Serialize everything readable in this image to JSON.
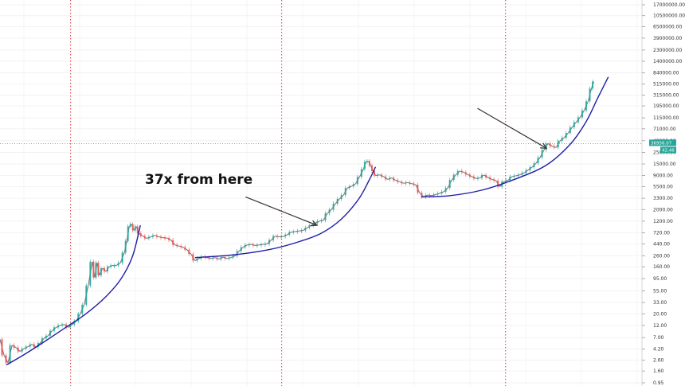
{
  "chart_data": {
    "type": "line",
    "scale": "log",
    "grid": true,
    "y_ticks": [
      "17000000.00",
      "10500000.00",
      "6500000.00",
      "3900000.00",
      "2300000.00",
      "1400000.00",
      "840000.00",
      "515000.00",
      "315000.00",
      "195000.00",
      "115000.00",
      "71000.00",
      "42000.00",
      "25000.00",
      "15000.00",
      "9000.00",
      "5500.00",
      "3300.00",
      "2000.00",
      "1200.00",
      "720.00",
      "440.00",
      "260.00",
      "160.00",
      "95.00",
      "55.00",
      "33.00",
      "20.00",
      "12.00",
      "7.00",
      "4.20",
      "2.60",
      "1.60",
      "0.95"
    ],
    "y_range": [
      0.95,
      17000000
    ],
    "current_price_label": "36956.07",
    "countdown_label": "42:46",
    "annotation": "37x from here",
    "colors": {
      "up_candle": "#26a69a",
      "down_candle": "#ef5350",
      "price_series": "#7a7a7a",
      "support_curve": "#1f1fa8",
      "halving_line": "#e53935",
      "price_tag": "#26a69a",
      "countdown_tag": "#26a69a"
    },
    "series": [
      {
        "values": [
          [
            0,
            6.5
          ],
          [
            5,
            3.2
          ],
          [
            10,
            2.3
          ],
          [
            15,
            5
          ],
          [
            20,
            4.5
          ],
          [
            25,
            3.8
          ],
          [
            30,
            4.3
          ],
          [
            35,
            4.7
          ],
          [
            40,
            5.2
          ],
          [
            45,
            4.6
          ],
          [
            50,
            5.5
          ],
          [
            55,
            6.8
          ],
          [
            60,
            7.6
          ],
          [
            65,
            9.5
          ],
          [
            70,
            11
          ],
          [
            75,
            12
          ],
          [
            80,
            12.5
          ],
          [
            85,
            11
          ],
          [
            90,
            12.5
          ],
          [
            95,
            14.5
          ],
          [
            100,
            20
          ],
          [
            105,
            30
          ],
          [
            110,
            70
          ],
          [
            115,
            200
          ],
          [
            118,
            100
          ],
          [
            121,
            190
          ],
          [
            124,
            110
          ],
          [
            128,
            150
          ],
          [
            132,
            130
          ],
          [
            136,
            160
          ],
          [
            140,
            170
          ],
          [
            145,
            170
          ],
          [
            150,
            190
          ],
          [
            155,
            300
          ],
          [
            158,
            500
          ],
          [
            161,
            950
          ],
          [
            164,
            1050
          ],
          [
            167,
            800
          ],
          [
            170,
            950
          ],
          [
            173,
            700
          ],
          [
            178,
            620
          ],
          [
            183,
            560
          ],
          [
            188,
            600
          ],
          [
            193,
            640
          ],
          [
            198,
            600
          ],
          [
            203,
            580
          ],
          [
            208,
            570
          ],
          [
            213,
            520
          ],
          [
            218,
            420
          ],
          [
            223,
            400
          ],
          [
            228,
            380
          ],
          [
            233,
            340
          ],
          [
            238,
            280
          ],
          [
            243,
            210
          ],
          [
            248,
            230
          ],
          [
            253,
            250
          ],
          [
            258,
            240
          ],
          [
            263,
            230
          ],
          [
            268,
            240
          ],
          [
            273,
            225
          ],
          [
            278,
            245
          ],
          [
            283,
            230
          ],
          [
            288,
            240
          ],
          [
            293,
            260
          ],
          [
            298,
            320
          ],
          [
            303,
            380
          ],
          [
            308,
            420
          ],
          [
            313,
            430
          ],
          [
            318,
            410
          ],
          [
            323,
            420
          ],
          [
            328,
            430
          ],
          [
            333,
            440
          ],
          [
            338,
            520
          ],
          [
            343,
            620
          ],
          [
            348,
            600
          ],
          [
            353,
            610
          ],
          [
            358,
            660
          ],
          [
            363,
            740
          ],
          [
            368,
            760
          ],
          [
            373,
            780
          ],
          [
            378,
            800
          ],
          [
            383,
            900
          ],
          [
            388,
            1000
          ],
          [
            393,
            1100
          ],
          [
            398,
            1200
          ],
          [
            403,
            1250
          ],
          [
            408,
            1700
          ],
          [
            413,
            2000
          ],
          [
            418,
            2600
          ],
          [
            423,
            3200
          ],
          [
            428,
            3800
          ],
          [
            433,
            5200
          ],
          [
            438,
            5600
          ],
          [
            443,
            6200
          ],
          [
            448,
            8500
          ],
          [
            453,
            12000
          ],
          [
            456,
            16500
          ],
          [
            459,
            17000
          ],
          [
            462,
            14000
          ],
          [
            465,
            11000
          ],
          [
            468,
            9000
          ],
          [
            473,
            9300
          ],
          [
            478,
            8600
          ],
          [
            483,
            7600
          ],
          [
            488,
            8100
          ],
          [
            493,
            7300
          ],
          [
            498,
            6800
          ],
          [
            503,
            6400
          ],
          [
            508,
            6600
          ],
          [
            513,
            6300
          ],
          [
            518,
            6000
          ],
          [
            523,
            4200
          ],
          [
            528,
            3500
          ],
          [
            533,
            3800
          ],
          [
            538,
            3700
          ],
          [
            543,
            3900
          ],
          [
            548,
            4100
          ],
          [
            553,
            4400
          ],
          [
            558,
            5200
          ],
          [
            563,
            7400
          ],
          [
            568,
            9300
          ],
          [
            573,
            11000
          ],
          [
            578,
            10400
          ],
          [
            583,
            9400
          ],
          [
            588,
            8600
          ],
          [
            593,
            7900
          ],
          [
            598,
            8100
          ],
          [
            603,
            9200
          ],
          [
            608,
            8300
          ],
          [
            613,
            7600
          ],
          [
            618,
            7200
          ],
          [
            623,
            5500
          ],
          [
            628,
            6900
          ],
          [
            633,
            7300
          ],
          [
            638,
            8600
          ],
          [
            643,
            8900
          ],
          [
            648,
            9300
          ],
          [
            653,
            10100
          ],
          [
            658,
            11400
          ],
          [
            663,
            13000
          ],
          [
            668,
            15500
          ],
          [
            673,
            20000
          ],
          [
            678,
            28000
          ],
          [
            683,
            36956
          ],
          [
            688,
            33000
          ],
          [
            693,
            31000
          ],
          [
            698,
            42000
          ],
          [
            703,
            48000
          ],
          [
            708,
            59000
          ],
          [
            713,
            76000
          ],
          [
            718,
            95000
          ],
          [
            723,
            118000
          ],
          [
            728,
            160000
          ],
          [
            733,
            240000
          ],
          [
            737,
            420000
          ],
          [
            740,
            570000
          ]
        ]
      }
    ],
    "support_curves": [
      [
        [
          8,
          2.1
        ],
        [
          30,
          3.3
        ],
        [
          55,
          5.8
        ],
        [
          80,
          10.5
        ],
        [
          105,
          19
        ],
        [
          130,
          40
        ],
        [
          150,
          90
        ],
        [
          165,
          250
        ],
        [
          175,
          1000
        ]
      ],
      [
        [
          243,
          240
        ],
        [
          290,
          270
        ],
        [
          335,
          340
        ],
        [
          370,
          470
        ],
        [
          400,
          700
        ],
        [
          425,
          1300
        ],
        [
          447,
          3200
        ],
        [
          460,
          7300
        ],
        [
          468,
          13200
        ]
      ],
      [
        [
          525,
          3500
        ],
        [
          560,
          3700
        ],
        [
          600,
          4700
        ],
        [
          640,
          7500
        ],
        [
          680,
          14000
        ],
        [
          710,
          35000
        ],
        [
          730,
          95000
        ],
        [
          745,
          280000
        ],
        [
          758,
          700000
        ]
      ]
    ],
    "arrows": [
      {
        "from": [
          306,
          3500
        ],
        "to": [
          395,
          1000
        ]
      },
      {
        "from": [
          595,
          175000
        ],
        "to": [
          681,
          30000
        ]
      }
    ],
    "halving_lines_x": [
      88,
      351,
      630
    ],
    "current_price": 36956.07,
    "x_range": [
      0,
      800
    ]
  }
}
